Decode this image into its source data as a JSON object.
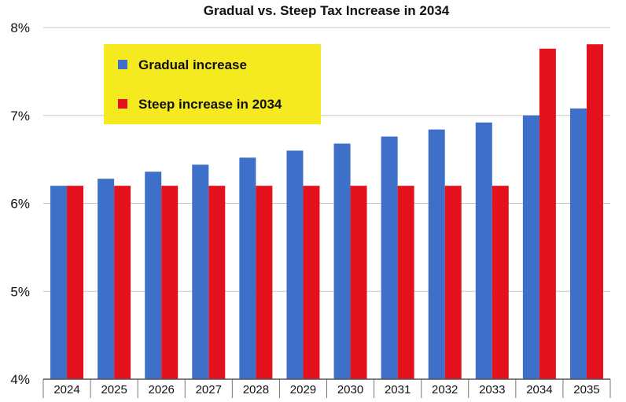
{
  "chart_data": {
    "type": "bar",
    "title": "Gradual vs. Steep Tax Increase in 2034",
    "xlabel": "",
    "ylabel": "",
    "categories": [
      "2024",
      "2025",
      "2026",
      "2027",
      "2028",
      "2029",
      "2030",
      "2031",
      "2032",
      "2033",
      "2034",
      "2035"
    ],
    "series": [
      {
        "name": "Gradual increase",
        "color": "#3e6fc9",
        "values": [
          6.2,
          6.28,
          6.36,
          6.44,
          6.52,
          6.6,
          6.68,
          6.76,
          6.84,
          6.92,
          7.0,
          7.08
        ]
      },
      {
        "name": "Steep increase in 2034",
        "color": "#e4121c",
        "values": [
          6.2,
          6.2,
          6.2,
          6.2,
          6.2,
          6.2,
          6.2,
          6.2,
          6.2,
          6.2,
          7.76,
          7.81
        ]
      }
    ],
    "ylim": [
      4,
      8
    ],
    "yticks": [
      "4%",
      "5%",
      "6%",
      "7%",
      "8%"
    ],
    "ytick_values": [
      4,
      5,
      6,
      7,
      8
    ],
    "grid": true,
    "legend": {
      "placement": "top-left",
      "background": "#f5ea1f"
    }
  }
}
